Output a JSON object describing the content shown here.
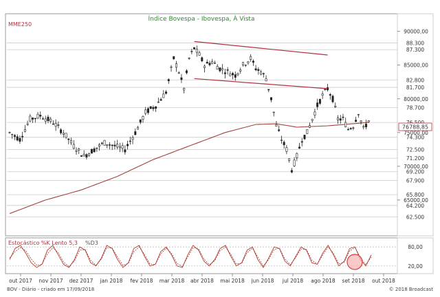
{
  "chart_data": [
    {
      "type": "candlestick",
      "title": "Índice Bovespa - Ibovespa, À Vista",
      "indicator_label": "MME250",
      "ylim": [
        60000,
        92000
      ],
      "y_axis_ticks": [
        "90000,00",
        "85000,00",
        "80000,00",
        "75000,00",
        "70000,00",
        "65000,00"
      ],
      "y_axis_tick_values": [
        90000,
        85000,
        80000,
        75000,
        70000,
        65000
      ],
      "horizontal_levels": [
        "88.300",
        "87.300",
        "82.800",
        "81.700",
        "78.700",
        "76.500",
        "74.300",
        "72.500",
        "71.200",
        "69.200",
        "67.900",
        "65.800",
        "64.200",
        "62.500"
      ],
      "horizontal_level_values": [
        88300,
        87300,
        82800,
        81700,
        78700,
        76500,
        74300,
        72500,
        71200,
        69200,
        67900,
        65800,
        64200,
        62500
      ],
      "last_price_label": "76788,85",
      "last_price": 76788.85,
      "x_axis_labels": [
        "out 2017",
        "nov 2017",
        "dez 2017",
        "jan 2018",
        "fev 2018",
        "mar 2018",
        "abr 2018",
        "mai 2018",
        "jun 2018",
        "jul 2018",
        "ago 2018",
        "set 2018",
        "out 2018"
      ],
      "price_path": [
        [
          0,
          75000
        ],
        [
          4,
          74000
        ],
        [
          8,
          77000
        ],
        [
          12,
          77500
        ],
        [
          17,
          76500
        ],
        [
          21,
          75000
        ],
        [
          25,
          73000
        ],
        [
          29,
          71500
        ],
        [
          33,
          72500
        ],
        [
          37,
          73500
        ],
        [
          41,
          73000
        ],
        [
          45,
          72500
        ],
        [
          49,
          75000
        ],
        [
          53,
          78000
        ],
        [
          57,
          79000
        ],
        [
          61,
          81000
        ],
        [
          64,
          86000
        ],
        [
          66,
          84000
        ],
        [
          68,
          81500
        ],
        [
          70,
          86000
        ],
        [
          72,
          87500
        ],
        [
          74,
          86500
        ],
        [
          76,
          85000
        ],
        [
          79,
          85500
        ],
        [
          82,
          84500
        ],
        [
          85,
          84000
        ],
        [
          88,
          83500
        ],
        [
          91,
          85000
        ],
        [
          94,
          86000
        ],
        [
          96,
          84500
        ],
        [
          98,
          84000
        ],
        [
          100,
          83000
        ],
        [
          102,
          80000
        ],
        [
          104,
          76000
        ],
        [
          106,
          74000
        ],
        [
          108,
          72500
        ],
        [
          110,
          69500
        ],
        [
          112,
          71500
        ],
        [
          114,
          74000
        ],
        [
          116,
          75000
        ],
        [
          118,
          77000
        ],
        [
          120,
          79000
        ],
        [
          122,
          80500
        ],
        [
          124,
          81500
        ],
        [
          126,
          80000
        ],
        [
          128,
          77000
        ],
        [
          130,
          77000
        ],
        [
          132,
          75500
        ],
        [
          134,
          76000
        ],
        [
          136,
          78000
        ],
        [
          138,
          75500
        ],
        [
          140,
          76800
        ]
      ],
      "ema250_path": [
        [
          0,
          63000
        ],
        [
          14,
          65000
        ],
        [
          28,
          66500
        ],
        [
          42,
          68500
        ],
        [
          56,
          71000
        ],
        [
          70,
          73000
        ],
        [
          84,
          75000
        ],
        [
          96,
          76200
        ],
        [
          104,
          76300
        ],
        [
          112,
          75800
        ],
        [
          124,
          76000
        ],
        [
          140,
          76500
        ]
      ],
      "trend_lines": [
        {
          "from": [
            72,
            88500
          ],
          "to": [
            124,
            86500
          ]
        },
        {
          "from": [
            72,
            83000
          ],
          "to": [
            124,
            81500
          ]
        }
      ]
    },
    {
      "type": "line",
      "title": "Estocástico %K Lento 5,3",
      "series_label": "%D3",
      "ylim": [
        0,
        100
      ],
      "y_axis_ticks": [
        "80,00",
        "20,00"
      ],
      "y_axis_tick_values": [
        80,
        20
      ],
      "series": [
        {
          "name": "%K Lento 5,3",
          "values": [
            40,
            75,
            85,
            60,
            30,
            15,
            25,
            70,
            85,
            55,
            25,
            15,
            40,
            80,
            70,
            30,
            20,
            45,
            85,
            75,
            40,
            15,
            30,
            75,
            85,
            50,
            20,
            25,
            65,
            80,
            55,
            20,
            15,
            55,
            85,
            70,
            35,
            20,
            40,
            75,
            85,
            50,
            20,
            30,
            70,
            80,
            40,
            15,
            45,
            80,
            75,
            35,
            20,
            50,
            80,
            70,
            30,
            25,
            60,
            85,
            55,
            20,
            35,
            75,
            80,
            40,
            20,
            55
          ]
        },
        {
          "name": "%D3",
          "values": [
            45,
            65,
            78,
            68,
            42,
            22,
            25,
            58,
            78,
            62,
            32,
            18,
            35,
            70,
            72,
            38,
            22,
            42,
            78,
            76,
            48,
            22,
            28,
            65,
            80,
            56,
            26,
            25,
            58,
            76,
            60,
            28,
            18,
            48,
            78,
            74,
            42,
            24,
            36,
            68,
            80,
            56,
            26,
            28,
            62,
            76,
            48,
            20,
            40,
            72,
            76,
            42,
            24,
            46,
            74,
            72,
            38,
            26,
            54,
            80,
            60,
            26,
            32,
            68,
            78,
            46,
            24,
            48
          ]
        }
      ]
    }
  ],
  "footer": {
    "left": "BOV - Diário - criado em 17/09/2018",
    "right": "© 2018 Broadcast"
  }
}
